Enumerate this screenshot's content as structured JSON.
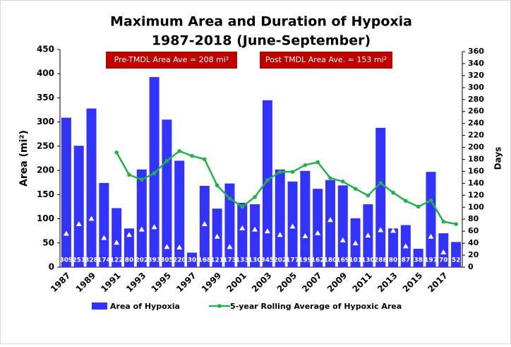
{
  "chart_data": {
    "type": "bar",
    "title": "Maximum Area and Duration of Hypoxia",
    "subtitle": "1987-2018 (June-September)",
    "y_label": "Area (mi²)",
    "y2_label": "Days",
    "annotations": [
      "Pre-TMDL Area Ave = 208 mi²",
      "Post TMDL Area Ave. = 153 mi²"
    ],
    "categories": [
      "1987",
      null,
      "1989",
      null,
      "1991",
      null,
      "1993",
      null,
      "1995",
      null,
      "1997",
      null,
      "1999",
      null,
      "2001",
      null,
      "2003",
      null,
      "2005",
      null,
      "2007",
      null,
      "2009",
      null,
      "2011",
      null,
      "2013",
      null,
      "2015",
      null,
      "2017",
      null
    ],
    "series": [
      {
        "name": "Area of Hypoxia",
        "type": "bar",
        "color": "#3333ff",
        "show_values": true,
        "values": [
          309,
          251,
          328,
          174,
          122,
          80,
          202,
          393,
          305,
          220,
          30,
          168,
          121,
          173,
          133,
          130,
          345,
          202,
          177,
          199,
          162,
          180,
          169,
          101,
          130,
          288,
          80,
          87,
          38,
          197,
          70,
          52
        ]
      },
      {
        "name": "5-year Rolling Average of Hypoxic Area",
        "type": "line",
        "color": "#22b14c",
        "values": [
          null,
          null,
          null,
          null,
          237,
          191,
          181,
          194,
          220,
          240,
          230,
          223,
          169,
          142,
          125,
          145,
          180,
          197,
          197,
          211,
          217,
          184,
          177,
          162,
          148,
          174,
          154,
          137,
          125,
          138,
          94,
          89
        ]
      },
      {
        "type": "triangle",
        "axis": "y2",
        "color": "#ffffff",
        "values": [
          56,
          72,
          81,
          49,
          41,
          54,
          63,
          67,
          34,
          33,
          null,
          72,
          51,
          34,
          65,
          63,
          60,
          54,
          68,
          52,
          57,
          79,
          45,
          40,
          53,
          62,
          61,
          35,
          null,
          51,
          25,
          null
        ]
      }
    ],
    "ylim": [
      0,
      450
    ],
    "yticks": [
      0,
      50,
      100,
      150,
      200,
      250,
      300,
      350,
      400,
      450
    ],
    "y2lim": [
      0,
      360
    ],
    "y2ticks": [
      0,
      20,
      40,
      60,
      80,
      100,
      120,
      140,
      160,
      180,
      200,
      220,
      240,
      260,
      280,
      300,
      320,
      340,
      360
    ],
    "annotation_color": "#c00000"
  }
}
